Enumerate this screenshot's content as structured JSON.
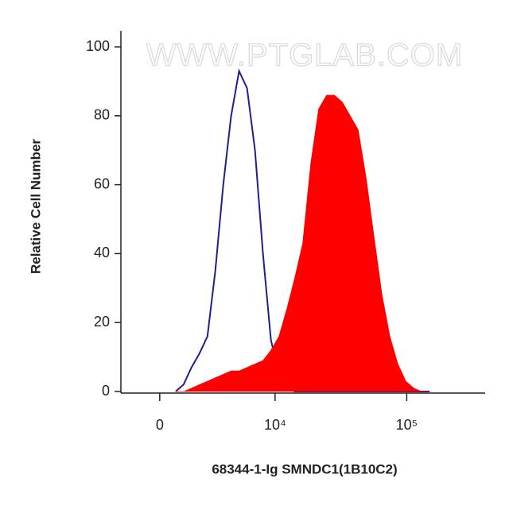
{
  "chart_data": {
    "type": "area",
    "watermark": "WWW.PTGLAB.COM",
    "x_label": "68344-1-Ig SMNDC1(1B10C2)",
    "y_label": "Relative Cell Number",
    "x": [
      768,
      1171,
      1596,
      2050,
      2549,
      3088,
      3689,
      4353,
      5111,
      5964,
      6931,
      8028,
      9271,
      10698,
      12329,
      14194,
      16318,
      18762,
      21572,
      24795,
      28459,
      32674,
      37523,
      43088,
      49425,
      56725,
      65156,
      74743,
      85791,
      98491,
      113065,
      129733,
      148908
    ],
    "series": [
      {
        "color": "#1f1f8f",
        "fill": false,
        "values": [
          0,
          2,
          7,
          11,
          16,
          35,
          60,
          80,
          93,
          88,
          70,
          40,
          15,
          5,
          1,
          0,
          0,
          0,
          0,
          0,
          0,
          0,
          0,
          0,
          0,
          0,
          0,
          0,
          0,
          0,
          0,
          0,
          0
        ]
      },
      {
        "color": "#ff0000",
        "fill": true,
        "values": [
          0,
          0,
          1,
          2,
          3,
          4,
          5,
          6,
          6,
          7,
          8,
          9,
          12,
          16,
          24,
          33,
          43,
          66,
          82,
          86,
          86,
          84,
          80,
          76,
          62,
          45,
          28,
          16,
          8,
          3,
          1,
          0,
          0
        ]
      }
    ],
    "xlim": [
      -2000,
      390000
    ],
    "xticks": [
      0,
      {
        "value": 10000,
        "label": "10⁴"
      },
      {
        "value": 100000,
        "label": "10⁵"
      }
    ],
    "ylim": [
      0,
      100
    ],
    "yticks": [
      0,
      20,
      40,
      60,
      80,
      100
    ]
  }
}
